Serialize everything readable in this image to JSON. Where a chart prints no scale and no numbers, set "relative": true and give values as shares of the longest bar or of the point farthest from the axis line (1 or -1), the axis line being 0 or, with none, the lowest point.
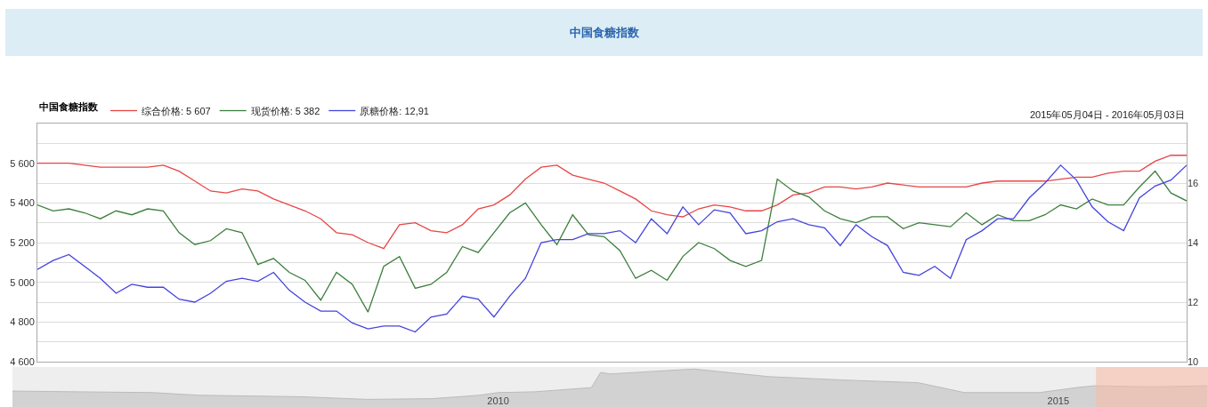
{
  "chart_data": [
    {
      "type": "line",
      "title": "中国食糖指数",
      "legend_title": "中国食糖指数",
      "annotations": [
        "2015年05月04日 - 2016年05月03日"
      ],
      "categories": [
        null,
        null,
        null,
        null,
        null,
        null,
        null,
        null,
        null,
        null,
        null,
        null,
        null,
        null,
        null,
        null,
        null,
        null,
        null,
        null,
        null,
        null,
        null,
        null,
        null,
        null,
        null,
        null,
        null,
        null,
        null,
        null,
        null,
        null,
        null,
        null,
        null,
        null,
        null,
        null,
        null,
        null,
        null,
        null,
        null,
        null,
        null,
        null,
        null,
        null,
        null,
        null,
        null,
        null,
        null,
        null,
        null,
        null,
        null,
        null,
        null,
        null,
        null,
        null,
        null,
        null,
        null,
        null,
        null,
        null,
        null,
        null,
        null,
        null
      ],
      "ylim": [
        4600,
        5800
      ],
      "yticks": [
        {
          "value": 4600,
          "label": "4 600"
        },
        {
          "value": 4700,
          "label": null
        },
        {
          "value": 4800,
          "label": "4 800"
        },
        {
          "value": 4900,
          "label": null
        },
        {
          "value": 5000,
          "label": "5 000"
        },
        {
          "value": 5100,
          "label": null
        },
        {
          "value": 5200,
          "label": "5 200"
        },
        {
          "value": 5300,
          "label": null
        },
        {
          "value": 5400,
          "label": "5 400"
        },
        {
          "value": 5500,
          "label": null
        },
        {
          "value": 5600,
          "label": "5 600"
        },
        {
          "value": 5700,
          "label": null
        }
      ],
      "y2lim": [
        10,
        18
      ],
      "y2ticks": [
        10,
        12,
        14,
        16
      ],
      "grid": "y",
      "legend": "top left",
      "marker": "none",
      "line_style": "solid",
      "series": [
        {
          "name": "综合价格: 5 607",
          "color": "#e84545",
          "values": [
            5600,
            5600,
            5600,
            5590,
            5580,
            5580,
            5580,
            5580,
            5590,
            5560,
            5510,
            5460,
            5450,
            5470,
            5460,
            5420,
            5390,
            5360,
            5320,
            5250,
            5240,
            5200,
            5170,
            5290,
            5300,
            5260,
            5250,
            5290,
            5370,
            5390,
            5440,
            5520,
            5580,
            5590,
            5540,
            5520,
            5500,
            5460,
            5420,
            5360,
            5340,
            5330,
            5370,
            5390,
            5380,
            5360,
            5360,
            5390,
            5440,
            5450,
            5480,
            5480,
            5470,
            5480,
            5500,
            5490,
            5480,
            5480,
            5480,
            5480,
            5500,
            5510,
            5510,
            5510,
            5510,
            5520,
            5530,
            5530,
            5550,
            5560,
            5560,
            5610,
            5640,
            5640
          ]
        },
        {
          "name": "现货价格: 5 382",
          "color": "#3d7f3d",
          "values": [
            5390,
            5360,
            5370,
            5350,
            5320,
            5360,
            5340,
            5370,
            5360,
            5250,
            5190,
            5210,
            5270,
            5250,
            5090,
            5120,
            5050,
            5010,
            4910,
            5050,
            4990,
            4850,
            5080,
            5130,
            4970,
            4990,
            5050,
            5180,
            5150,
            5250,
            5350,
            5400,
            5290,
            5190,
            5340,
            5240,
            5230,
            5160,
            5020,
            5060,
            5010,
            5130,
            5200,
            5170,
            5110,
            5080,
            5110,
            5520,
            5460,
            5430,
            5360,
            5320,
            5300,
            5330,
            5330,
            5270,
            5300,
            5290,
            5280,
            5350,
            5290,
            5340,
            5310,
            5310,
            5340,
            5390,
            5370,
            5420,
            5390,
            5390,
            5480,
            5560,
            5450,
            5410
          ]
        },
        {
          "name": "原糖价格: 12,91",
          "color": "#4444dd",
          "axis": "y2",
          "values": [
            13.1,
            13.4,
            13.6,
            13.2,
            12.8,
            12.3,
            12.6,
            12.5,
            12.5,
            12.1,
            12.0,
            12.3,
            12.7,
            12.8,
            12.7,
            13.0,
            12.4,
            12.0,
            11.7,
            11.7,
            11.3,
            11.1,
            11.2,
            11.2,
            11.0,
            11.5,
            11.6,
            12.2,
            12.1,
            11.5,
            12.2,
            12.8,
            14.0,
            14.1,
            14.1,
            14.3,
            14.3,
            14.4,
            14.0,
            14.8,
            14.3,
            15.2,
            14.6,
            15.1,
            15.0,
            14.3,
            14.4,
            14.7,
            14.8,
            14.6,
            14.5,
            13.9,
            14.6,
            14.2,
            13.9,
            13.0,
            12.9,
            13.2,
            12.8,
            14.1,
            14.4,
            14.8,
            14.8,
            15.5,
            16.0,
            16.6,
            16.1,
            15.2,
            14.7,
            14.4,
            15.5,
            15.9,
            16.1,
            16.6
          ]
        }
      ]
    },
    {
      "type": "area",
      "relative": true,
      "color": "#d2d2d2",
      "x": [
        "2005-09",
        "2006-04",
        "2006-12",
        "2007-05",
        "2008-04",
        "2008-11",
        "2009-06",
        "2009-11",
        "2010-01",
        "2010-05",
        "2010-11",
        "2010-12",
        "2011-01",
        "2011-10",
        "2012-06",
        "2013-02",
        "2013-10",
        "2014-03",
        "2014-11",
        "2015-03",
        "2015-05",
        "2015-11",
        "2016-05"
      ],
      "values": [
        0.42,
        0.4,
        0.38,
        0.31,
        0.27,
        0.2,
        0.22,
        0.31,
        0.38,
        0.4,
        0.51,
        0.91,
        0.87,
        1,
        0.8,
        0.71,
        0.64,
        0.38,
        0.38,
        0.51,
        0.56,
        0.53,
        0.56
      ],
      "xlim": [
        "2005-09-01",
        "2016-05-03"
      ],
      "xticks": [
        {
          "value": "2010-01-01",
          "label": "2010"
        },
        {
          "value": "2015-01-01",
          "label": "2015"
        }
      ],
      "tick_labels": "x",
      "bands": [
        {
          "axis": "x",
          "from": "2015-05-04",
          "to": "2016-05-03",
          "color": "#fbb8a2"
        }
      ]
    }
  ]
}
